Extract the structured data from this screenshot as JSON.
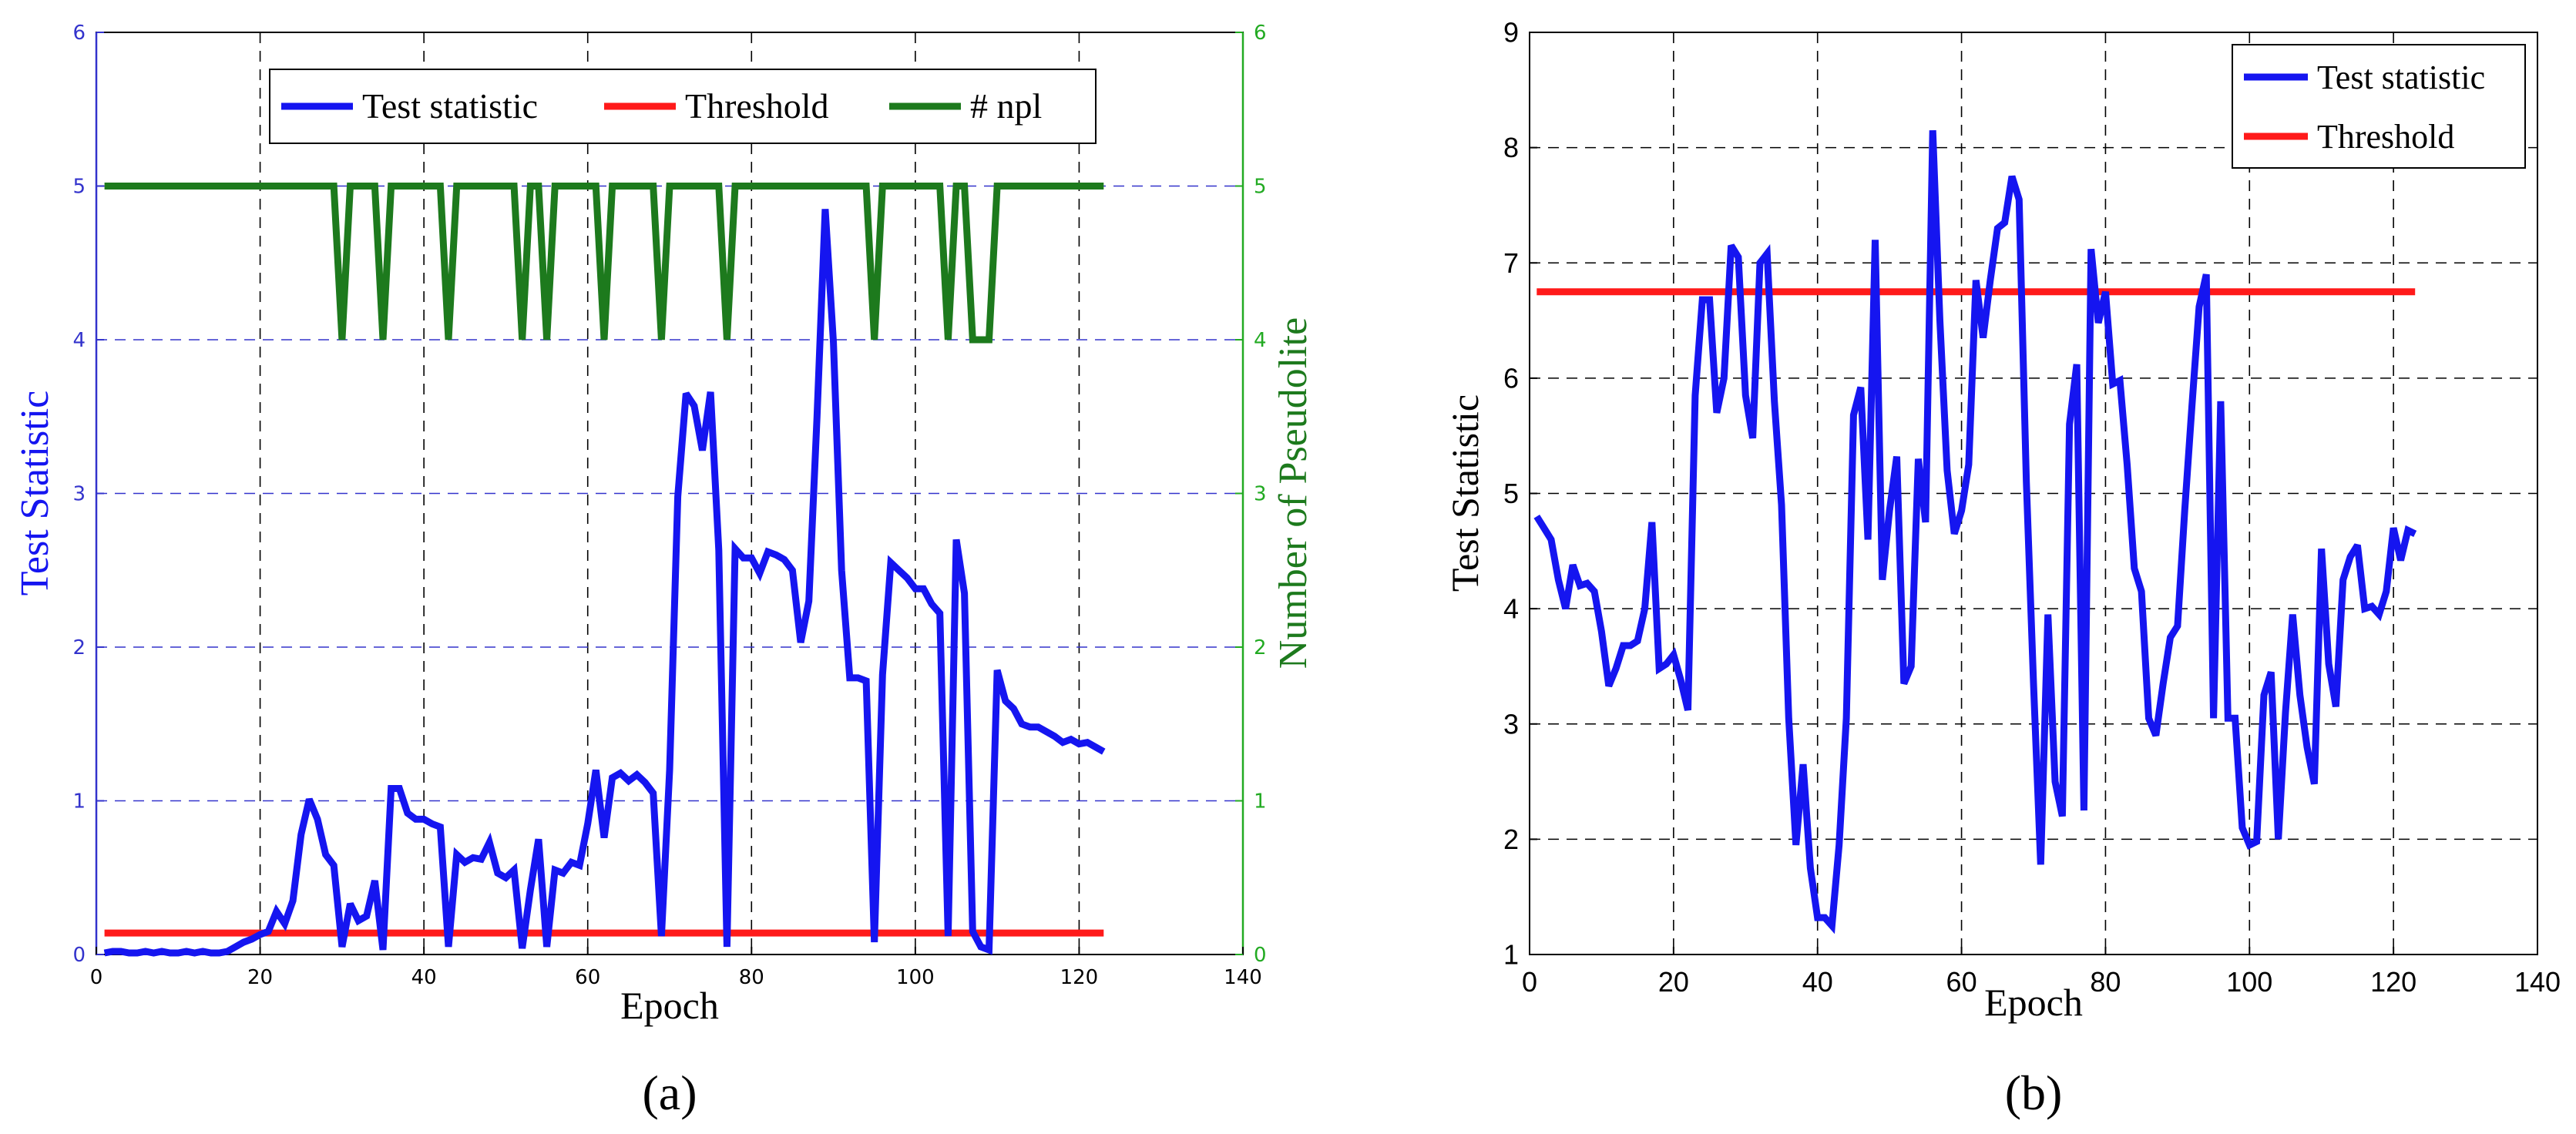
{
  "colors": {
    "blue": "#1515f0",
    "red": "#ff1a1a",
    "green": "#1d7a1d",
    "grid_blue": "#3333cc",
    "grid_black": "#000000",
    "axis_green": "#22aa22"
  },
  "chart_data": [
    {
      "type": "line",
      "panel_label": "(a)",
      "xlabel": "Epoch",
      "ylabel": "Test Statistic",
      "y2label": "Number of Pseudolite",
      "xlim": [
        0,
        140
      ],
      "ylim": [
        0,
        6
      ],
      "y2lim": [
        0,
        6
      ],
      "xticks": [
        0,
        20,
        40,
        60,
        80,
        100,
        120,
        140
      ],
      "yticks": [
        0,
        1,
        2,
        3,
        4,
        5,
        6
      ],
      "y2ticks": [
        0,
        1,
        2,
        3,
        4,
        5,
        6
      ],
      "legend": [
        "Test statistic",
        "Threshold",
        "# npl"
      ],
      "series": [
        {
          "name": "Test statistic",
          "axis": "left",
          "x": [
            1,
            2,
            3,
            4,
            5,
            6,
            7,
            8,
            9,
            10,
            11,
            12,
            13,
            14,
            15,
            16,
            17,
            18,
            19,
            20,
            21,
            22,
            23,
            24,
            25,
            26,
            27,
            28,
            29,
            30,
            31,
            32,
            33,
            34,
            35,
            36,
            37,
            38,
            39,
            40,
            41,
            42,
            43,
            44,
            45,
            46,
            47,
            48,
            49,
            50,
            51,
            52,
            53,
            54,
            55,
            56,
            57,
            58,
            59,
            60,
            61,
            62,
            63,
            64,
            65,
            66,
            67,
            68,
            69,
            70,
            71,
            72,
            73,
            74,
            75,
            76,
            77,
            78,
            79,
            80,
            81,
            82,
            83,
            84,
            85,
            86,
            87,
            88,
            89,
            90,
            91,
            92,
            93,
            94,
            95,
            96,
            97,
            98,
            99,
            100,
            101,
            102,
            103,
            104,
            105,
            106,
            107,
            108,
            109,
            110,
            111,
            112,
            113,
            114,
            115,
            116,
            117,
            118,
            119,
            120,
            121,
            122,
            123
          ],
          "values": [
            0.01,
            0.02,
            0.02,
            0.01,
            0.01,
            0.02,
            0.01,
            0.02,
            0.01,
            0.01,
            0.02,
            0.01,
            0.02,
            0.01,
            0.01,
            0.02,
            0.05,
            0.08,
            0.1,
            0.13,
            0.15,
            0.28,
            0.2,
            0.35,
            0.78,
            1.01,
            0.88,
            0.65,
            0.58,
            0.05,
            0.33,
            0.22,
            0.25,
            0.48,
            0.03,
            1.08,
            1.08,
            0.92,
            0.88,
            0.88,
            0.85,
            0.83,
            0.05,
            0.65,
            0.6,
            0.63,
            0.62,
            0.73,
            0.53,
            0.5,
            0.55,
            0.04,
            0.42,
            0.75,
            0.05,
            0.55,
            0.53,
            0.6,
            0.58,
            0.85,
            1.2,
            0.76,
            1.15,
            1.18,
            1.13,
            1.17,
            1.12,
            1.05,
            0.12,
            1.2,
            2.98,
            3.65,
            3.57,
            3.28,
            3.66,
            2.63,
            0.05,
            2.64,
            2.58,
            2.58,
            2.48,
            2.62,
            2.6,
            2.57,
            2.5,
            2.03,
            2.3,
            3.5,
            4.85,
            3.98,
            2.5,
            1.8,
            1.8,
            1.78,
            0.08,
            1.82,
            2.55,
            2.5,
            2.45,
            2.38,
            2.38,
            2.28,
            2.22,
            0.12,
            2.7,
            2.35,
            0.15,
            0.05,
            0.03,
            1.85,
            1.65,
            1.6,
            1.5,
            1.48,
            1.48,
            1.45,
            1.42,
            1.38,
            1.4,
            1.37,
            1.38,
            1.35,
            1.32
          ]
        },
        {
          "name": "Threshold",
          "axis": "left",
          "x": [
            1,
            123
          ],
          "values": [
            0.14,
            0.14
          ]
        },
        {
          "name": "# npl",
          "axis": "right",
          "x": [
            1,
            29,
            30,
            31,
            34,
            35,
            36,
            42,
            43,
            44,
            51,
            52,
            53,
            54,
            55,
            56,
            61,
            62,
            63,
            68,
            69,
            70,
            76,
            77,
            78,
            94,
            95,
            96,
            103,
            104,
            105,
            106,
            107,
            108,
            109,
            110,
            123
          ],
          "values": [
            5,
            5,
            4,
            5,
            5,
            4,
            5,
            5,
            4,
            5,
            5,
            4,
            5,
            5,
            4,
            5,
            5,
            4,
            5,
            5,
            4,
            5,
            5,
            4,
            5,
            5,
            4,
            5,
            5,
            4,
            5,
            5,
            4,
            4,
            4,
            5,
            5
          ]
        }
      ]
    },
    {
      "type": "line",
      "panel_label": "(b)",
      "xlabel": "Epoch",
      "ylabel": "Test Statistic",
      "xlim": [
        0,
        140
      ],
      "ylim": [
        1,
        9
      ],
      "xticks": [
        0,
        20,
        40,
        60,
        80,
        100,
        120,
        140
      ],
      "yticks": [
        1,
        2,
        3,
        4,
        5,
        6,
        7,
        8,
        9
      ],
      "legend": [
        "Test statistic",
        "Threshold"
      ],
      "series": [
        {
          "name": "Test statistic",
          "x": [
            1,
            2,
            3,
            4,
            5,
            6,
            7,
            8,
            9,
            10,
            11,
            12,
            13,
            14,
            15,
            16,
            17,
            18,
            19,
            20,
            21,
            22,
            23,
            24,
            25,
            26,
            27,
            28,
            29,
            30,
            31,
            32,
            33,
            34,
            35,
            36,
            37,
            38,
            39,
            40,
            41,
            42,
            43,
            44,
            45,
            46,
            47,
            48,
            49,
            50,
            51,
            52,
            53,
            54,
            55,
            56,
            57,
            58,
            59,
            60,
            61,
            62,
            63,
            64,
            65,
            66,
            67,
            68,
            69,
            70,
            71,
            72,
            73,
            74,
            75,
            76,
            77,
            78,
            79,
            80,
            81,
            82,
            83,
            84,
            85,
            86,
            87,
            88,
            89,
            90,
            91,
            92,
            93,
            94,
            95,
            96,
            97,
            98,
            99,
            100,
            101,
            102,
            103,
            104,
            105,
            106,
            107,
            108,
            109,
            110,
            111,
            112,
            113,
            114,
            115,
            116,
            117,
            118,
            119,
            120,
            121,
            122,
            123
          ],
          "values": [
            4.8,
            4.7,
            4.6,
            4.25,
            4.0,
            4.38,
            4.2,
            4.22,
            4.15,
            3.8,
            3.33,
            3.48,
            3.68,
            3.68,
            3.72,
            4.0,
            4.75,
            3.48,
            3.52,
            3.6,
            3.38,
            3.12,
            5.85,
            6.68,
            6.68,
            5.7,
            6.0,
            7.15,
            7.05,
            5.85,
            5.48,
            7.0,
            7.08,
            5.8,
            4.9,
            3.05,
            1.95,
            2.65,
            1.75,
            1.32,
            1.32,
            1.25,
            1.95,
            3.05,
            5.68,
            5.92,
            4.6,
            7.2,
            4.25,
            4.85,
            5.32,
            3.35,
            3.5,
            5.3,
            4.75,
            8.15,
            6.5,
            5.2,
            4.65,
            4.85,
            5.25,
            6.85,
            6.35,
            6.85,
            7.3,
            7.35,
            7.75,
            7.55,
            5.1,
            3.35,
            1.78,
            3.95,
            2.5,
            2.2,
            5.6,
            6.12,
            2.25,
            7.12,
            6.48,
            6.75,
            5.95,
            5.98,
            5.25,
            4.35,
            4.15,
            3.05,
            2.9,
            3.35,
            3.75,
            3.85,
            4.85,
            5.75,
            6.62,
            6.9,
            3.05,
            5.8,
            3.05,
            3.05,
            2.1,
            1.95,
            1.98,
            3.25,
            3.45,
            2.0,
            3.1,
            3.95,
            3.25,
            2.8,
            2.48,
            4.52,
            3.52,
            3.15,
            4.25,
            4.45,
            4.55,
            4.0,
            4.02,
            3.95,
            4.15,
            4.7,
            4.42,
            4.68,
            4.65
          ]
        },
        {
          "name": "Threshold",
          "x": [
            1,
            123
          ],
          "values": [
            6.75,
            6.75
          ]
        }
      ]
    }
  ]
}
